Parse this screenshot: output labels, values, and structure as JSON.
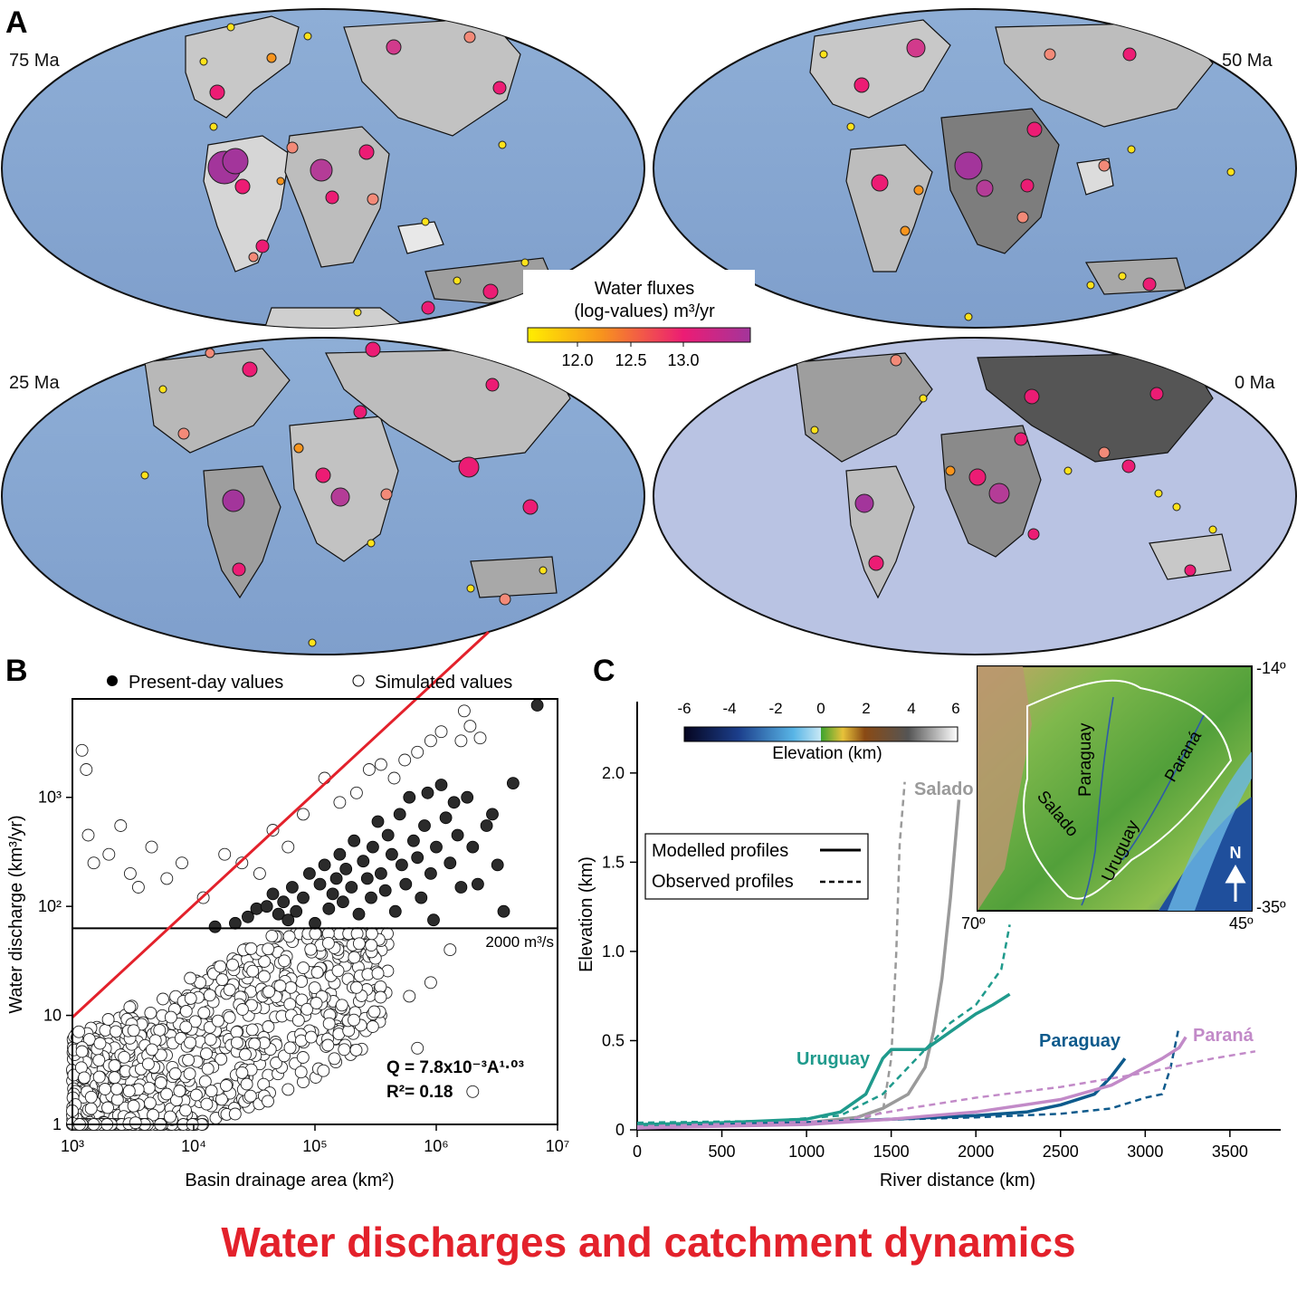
{
  "title": "Water discharges and catchment dynamics",
  "panels": {
    "A": {
      "letter": "A",
      "maps": [
        "75 Ma",
        "50 Ma",
        "25 Ma",
        "0 Ma"
      ],
      "colorbar": {
        "title_line1": "Water fluxes",
        "title_line2": "(log-values) m³/yr",
        "ticks": [
          "12.0",
          "12.5",
          "13.0"
        ],
        "colors": [
          "#ffee00",
          "#f7941d",
          "#ec1c74",
          "#a3359b"
        ]
      }
    },
    "B": {
      "letter": "B"
    },
    "C": {
      "letter": "C"
    }
  },
  "chart_data": [
    {
      "type": "scatter",
      "panel": "B",
      "xlabel": "Basin drainage area (km²)",
      "ylabel": "Water discharge (km³/yr)",
      "x_scale": "log",
      "y_scale": "log",
      "xlim": [
        1000,
        10000000
      ],
      "ylim": [
        1,
        8000
      ],
      "x_ticks": [
        "10³",
        "10⁴",
        "10⁵",
        "10⁶",
        "10⁷"
      ],
      "y_ticks": [
        "1",
        "10",
        "10²",
        "10³"
      ],
      "legend": [
        {
          "label": "Present-day values",
          "marker": "filled"
        },
        {
          "label": "Simulated values",
          "marker": "open"
        }
      ],
      "threshold": {
        "y": 63,
        "label": "2000 m³/s"
      },
      "fit": {
        "label": "Q = 7.8x10⁻³A¹·⁰³",
        "r2": "R²= 0.18",
        "coef": 0.0078,
        "exp": 1.03,
        "color": "#e3212b"
      },
      "series": [
        {
          "name": "Present-day values",
          "points": [
            [
              15000,
              65
            ],
            [
              22000,
              70
            ],
            [
              28000,
              80
            ],
            [
              33000,
              95
            ],
            [
              40000,
              100
            ],
            [
              45000,
              130
            ],
            [
              50000,
              85
            ],
            [
              55000,
              110
            ],
            [
              60000,
              75
            ],
            [
              65000,
              150
            ],
            [
              70000,
              90
            ],
            [
              80000,
              120
            ],
            [
              90000,
              200
            ],
            [
              100000,
              70
            ],
            [
              110000,
              160
            ],
            [
              120000,
              240
            ],
            [
              130000,
              95
            ],
            [
              140000,
              130
            ],
            [
              150000,
              180
            ],
            [
              160000,
              300
            ],
            [
              170000,
              110
            ],
            [
              180000,
              220
            ],
            [
              200000,
              150
            ],
            [
              210000,
              400
            ],
            [
              230000,
              85
            ],
            [
              250000,
              260
            ],
            [
              270000,
              180
            ],
            [
              290000,
              120
            ],
            [
              300000,
              350
            ],
            [
              330000,
              600
            ],
            [
              350000,
              200
            ],
            [
              380000,
              140
            ],
            [
              400000,
              450
            ],
            [
              430000,
              300
            ],
            [
              460000,
              90
            ],
            [
              500000,
              700
            ],
            [
              520000,
              240
            ],
            [
              560000,
              160
            ],
            [
              600000,
              1000
            ],
            [
              650000,
              400
            ],
            [
              700000,
              280
            ],
            [
              750000,
              120
            ],
            [
              800000,
              550
            ],
            [
              850000,
              1100
            ],
            [
              900000,
              200
            ],
            [
              950000,
              75
            ],
            [
              1000000,
              350
            ],
            [
              1100000,
              1300
            ],
            [
              1200000,
              650
            ],
            [
              1300000,
              250
            ],
            [
              1400000,
              900
            ],
            [
              1500000,
              450
            ],
            [
              1600000,
              150
            ],
            [
              1800000,
              1000
            ],
            [
              2000000,
              350
            ],
            [
              2200000,
              160
            ],
            [
              2600000,
              550
            ],
            [
              2900000,
              700
            ],
            [
              3200000,
              240
            ],
            [
              3600000,
              90
            ],
            [
              4300000,
              1350
            ],
            [
              6800000,
              7000
            ]
          ]
        },
        {
          "name": "Simulated values",
          "points": [
            [
              1200,
              2700
            ],
            [
              1300,
              1800
            ],
            [
              1350,
              450
            ],
            [
              1500,
              250
            ],
            [
              2000,
              300
            ],
            [
              2500,
              550
            ],
            [
              3000,
              200
            ],
            [
              3500,
              150
            ],
            [
              4500,
              350
            ],
            [
              6000,
              180
            ],
            [
              8000,
              250
            ],
            [
              12000,
              120
            ],
            [
              18000,
              300
            ],
            [
              25000,
              250
            ],
            [
              35000,
              200
            ],
            [
              45000,
              500
            ],
            [
              60000,
              350
            ],
            [
              80000,
              700
            ],
            [
              120000,
              1500
            ],
            [
              160000,
              900
            ],
            [
              220000,
              1100
            ],
            [
              280000,
              1800
            ],
            [
              350000,
              2000
            ],
            [
              450000,
              1500
            ],
            [
              550000,
              2200
            ],
            [
              700000,
              2600
            ],
            [
              900000,
              3300
            ],
            [
              1100000,
              4000
            ],
            [
              1600000,
              3300
            ],
            [
              1900000,
              4500
            ],
            [
              2300000,
              3500
            ],
            [
              1700000,
              6200
            ],
            [
              400000,
              45
            ],
            [
              600000,
              15
            ],
            [
              900000,
              20
            ],
            [
              1300000,
              40
            ],
            [
              2000000,
              2
            ],
            [
              700000,
              5
            ],
            [
              350000,
              10
            ],
            [
              300000,
              30
            ],
            [
              200000,
              55
            ],
            [
              150000,
              8
            ],
            [
              100000,
              25
            ]
          ]
        }
      ]
    },
    {
      "type": "line",
      "panel": "C",
      "xlabel": "River distance (km)",
      "ylabel": "Elevation (km)",
      "xlim": [
        0,
        3800
      ],
      "ylim": [
        0,
        2.4
      ],
      "x_ticks": [
        "0",
        "500",
        "1000",
        "1500",
        "2000",
        "2500",
        "3000",
        "3500"
      ],
      "y_ticks": [
        "0",
        "0.5",
        "1.0",
        "1.5",
        "2.0"
      ],
      "legend": [
        {
          "label": "Modelled  profiles",
          "style": "solid"
        },
        {
          "label": "Observed  profiles",
          "style": "dashed"
        }
      ],
      "colorbar": {
        "title": "Elevation (km)",
        "ticks": [
          "-6",
          "-4",
          "-2",
          "0",
          "2",
          "4",
          "6"
        ]
      },
      "inset": {
        "labels": [
          "Paraguay",
          "Paraná",
          "Salado",
          "Uruguay"
        ],
        "north": "N",
        "lat_top": "-14º",
        "lat_bottom": "-35º",
        "lon_left": "70º",
        "lon_right": "45º"
      },
      "series": [
        {
          "name": "Salado",
          "color": "#9a9a9a",
          "modelled": [
            [
              0,
              0.02
            ],
            [
              600,
              0.03
            ],
            [
              1000,
              0.04
            ],
            [
              1300,
              0.07
            ],
            [
              1450,
              0.12
            ],
            [
              1600,
              0.2
            ],
            [
              1700,
              0.35
            ],
            [
              1750,
              0.55
            ],
            [
              1800,
              0.85
            ],
            [
              1850,
              1.3
            ],
            [
              1900,
              1.85
            ]
          ],
          "observed": [
            [
              0,
              0.02
            ],
            [
              900,
              0.03
            ],
            [
              1300,
              0.05
            ],
            [
              1450,
              0.1
            ],
            [
              1500,
              0.4
            ],
            [
              1530,
              1.0
            ],
            [
              1550,
              1.6
            ],
            [
              1580,
              1.95
            ]
          ]
        },
        {
          "name": "Uruguay",
          "color": "#1f9a8c",
          "modelled": [
            [
              0,
              0.03
            ],
            [
              500,
              0.04
            ],
            [
              1000,
              0.06
            ],
            [
              1200,
              0.1
            ],
            [
              1350,
              0.2
            ],
            [
              1450,
              0.4
            ],
            [
              1500,
              0.45
            ],
            [
              1700,
              0.45
            ],
            [
              1850,
              0.55
            ],
            [
              2000,
              0.65
            ],
            [
              2100,
              0.7
            ],
            [
              2200,
              0.76
            ]
          ],
          "observed": [
            [
              0,
              0.04
            ],
            [
              800,
              0.05
            ],
            [
              1200,
              0.08
            ],
            [
              1450,
              0.2
            ],
            [
              1550,
              0.3
            ],
            [
              1700,
              0.45
            ],
            [
              1850,
              0.6
            ],
            [
              2000,
              0.7
            ],
            [
              2150,
              0.9
            ],
            [
              2200,
              1.15
            ]
          ]
        },
        {
          "name": "Paraguay",
          "color": "#0d5a8c",
          "modelled": [
            [
              0,
              0.01
            ],
            [
              1000,
              0.04
            ],
            [
              1500,
              0.06
            ],
            [
              2000,
              0.08
            ],
            [
              2300,
              0.1
            ],
            [
              2500,
              0.14
            ],
            [
              2700,
              0.2
            ],
            [
              2800,
              0.3
            ],
            [
              2880,
              0.4
            ]
          ],
          "observed": [
            [
              0,
              0.02
            ],
            [
              1200,
              0.05
            ],
            [
              2000,
              0.07
            ],
            [
              2500,
              0.09
            ],
            [
              2800,
              0.12
            ],
            [
              3000,
              0.18
            ],
            [
              3100,
              0.2
            ],
            [
              3150,
              0.35
            ],
            [
              3200,
              0.58
            ]
          ]
        },
        {
          "name": "Paraná",
          "color": "#c28ac8",
          "modelled": [
            [
              0,
              0.01
            ],
            [
              1000,
              0.03
            ],
            [
              1500,
              0.06
            ],
            [
              2000,
              0.1
            ],
            [
              2500,
              0.17
            ],
            [
              2800,
              0.25
            ],
            [
              3000,
              0.35
            ],
            [
              3100,
              0.4
            ],
            [
              3200,
              0.46
            ],
            [
              3240,
              0.52
            ]
          ],
          "observed": [
            [
              0,
              0.02
            ],
            [
              1200,
              0.05
            ],
            [
              1600,
              0.12
            ],
            [
              2000,
              0.18
            ],
            [
              2500,
              0.24
            ],
            [
              3000,
              0.32
            ],
            [
              3400,
              0.4
            ],
            [
              3650,
              0.44
            ]
          ]
        }
      ]
    }
  ]
}
